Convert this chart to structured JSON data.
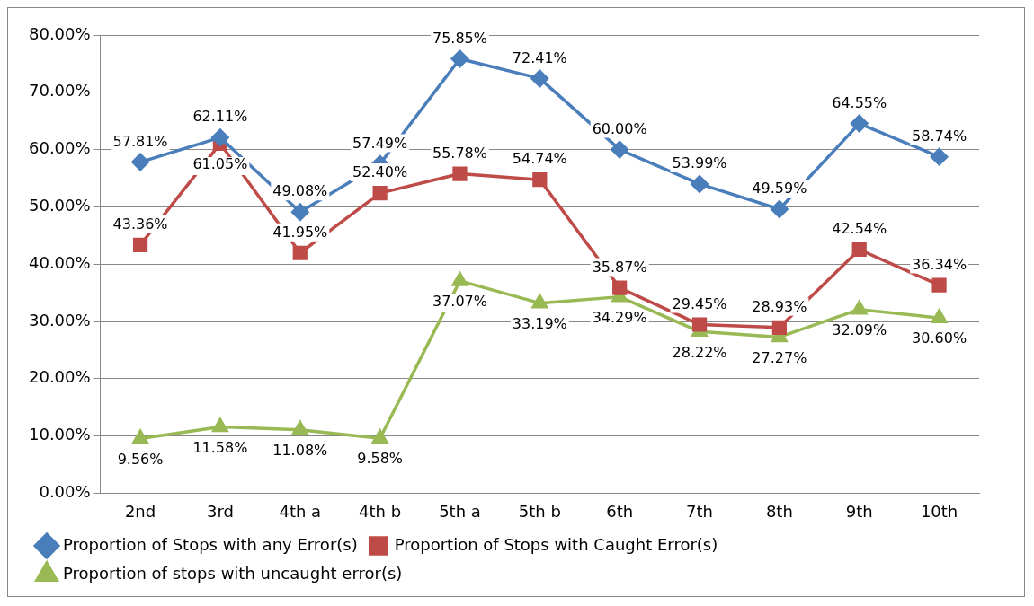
{
  "chart_data": {
    "type": "line",
    "categories": [
      "2nd",
      "3rd",
      "4th a",
      "4th b",
      "5th a",
      "5th b",
      "6th",
      "7th",
      "8th",
      "9th",
      "10th"
    ],
    "series": [
      {
        "name": "Proportion of Stops with any Error(s)",
        "color": "#4a7ebb",
        "marker": "diamond",
        "values": [
          57.81,
          62.11,
          49.08,
          57.49,
          75.85,
          72.41,
          60.0,
          53.99,
          49.59,
          64.55,
          58.74
        ],
        "value_labels": [
          "57.81%",
          "62.11%",
          "49.08%",
          "57.49%",
          "75.85%",
          "72.41%",
          "60.00%",
          "53.99%",
          "49.59%",
          "64.55%",
          "58.74%"
        ]
      },
      {
        "name": "Proportion of Stops with Caught Error(s)",
        "color": "#be4b48",
        "marker": "square",
        "values": [
          43.36,
          61.05,
          41.95,
          52.4,
          55.78,
          54.74,
          35.87,
          29.45,
          28.93,
          42.54,
          36.34
        ],
        "value_labels": [
          "43.36%",
          "61.05%",
          "41.95%",
          "52.40%",
          "55.78%",
          "54.74%",
          "35.87%",
          "29.45%",
          "28.93%",
          "42.54%",
          "36.34%"
        ]
      },
      {
        "name": "Proportion of stops with uncaught error(s)",
        "color": "#98b954",
        "marker": "triangle",
        "values": [
          9.56,
          11.58,
          11.08,
          9.58,
          37.07,
          33.19,
          34.29,
          28.22,
          27.27,
          32.09,
          30.6
        ],
        "value_labels": [
          "9.56%",
          "11.58%",
          "11.08%",
          "9.58%",
          "37.07%",
          "33.19%",
          "34.29%",
          "28.22%",
          "27.27%",
          "32.09%",
          "30.60%"
        ]
      }
    ],
    "ylim": [
      0,
      80
    ],
    "yticks": [
      {
        "value": 0,
        "label": "0.00%"
      },
      {
        "value": 10,
        "label": "10.00%"
      },
      {
        "value": 20,
        "label": "20.00%"
      },
      {
        "value": 30,
        "label": "30.00%"
      },
      {
        "value": 40,
        "label": "40.00%"
      },
      {
        "value": 50,
        "label": "50.00%"
      },
      {
        "value": 60,
        "label": "60.00%"
      },
      {
        "value": 70,
        "label": "70.00%"
      },
      {
        "value": 80,
        "label": "80.00%"
      }
    ],
    "grid": "y",
    "legend": "bottom",
    "line_style": "solid"
  }
}
